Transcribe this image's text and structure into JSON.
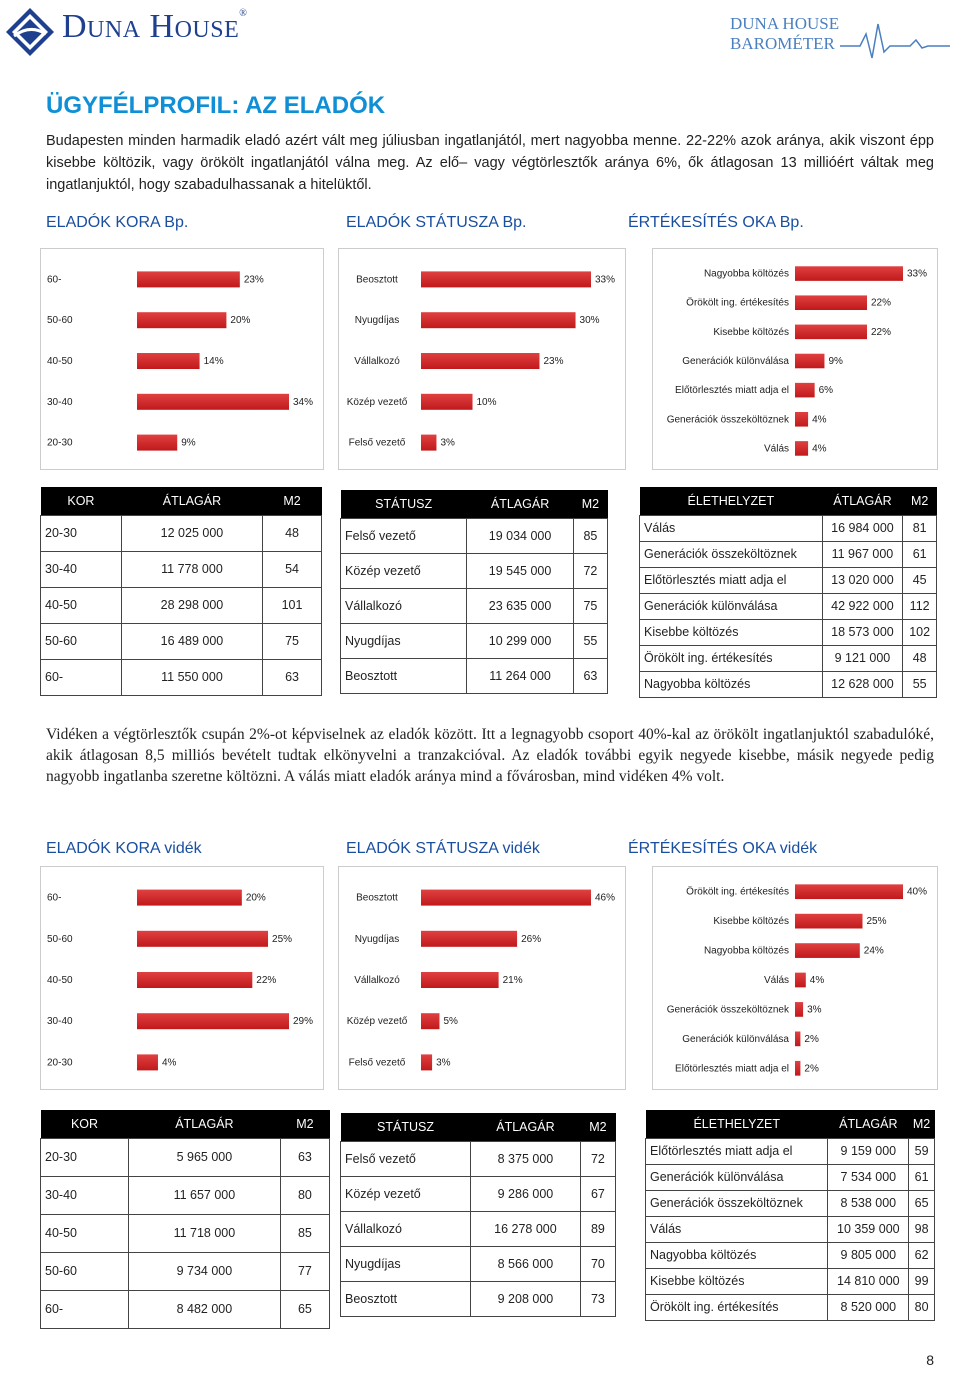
{
  "header": {
    "brand": "Duna House",
    "barometer_line1": "DUNA HOUSE",
    "barometer_line2": "BAROMÉTER",
    "colors": {
      "brand_blue": "#1f3f8f",
      "accent": "#0e8fd6",
      "bar_red": "#c0191c"
    }
  },
  "title": "ÜGYFÉLPROFIL: AZ ELADÓK",
  "paragraph1": "Budapesten minden harmadik eladó azért vált meg júliusban ingatlanjától, mert nagyobba menne. 22-22% azok aránya, akik viszont épp kisebbe költözik, vagy örökölt ingatlanjától válna meg. Az elő– vagy végtörlesztők aránya 6%, ők átlagosan 13 millióért váltak meg ingatlanjuktól, hogy szabadulhassanak a hitelüktől.",
  "paragraph2": "Vidéken a végtörlesztők csupán 2%-ot képviselnek az eladók között. Itt a legnagyobb csoport 40%-kal az örökölt ingatlanjuktól szabadulóké, akik átlagosan 8,5 milliós bevételt tudtak elkönyvelni a tranzakcióval. Az eladók további egyik negyede kisebbe, másik negyede pedig nagyobb ingatlanba szeretne költözni. A válás miatt eladók aránya mind a fővárosban, mind vidéken 4% volt.",
  "sections": {
    "bp_age": "ELADÓK KORA Bp.",
    "bp_status": "ELADÓK STÁTUSZA Bp.",
    "bp_reason": "ÉRTÉKESÍTÉS OKA Bp.",
    "v_age": "ELADÓK KORA vidék",
    "v_status": "ELADÓK STÁTUSZA vidék",
    "v_reason": "ÉRTÉKESÍTÉS OKA vidék"
  },
  "chart_data": [
    {
      "type": "bar",
      "id": "bp_age",
      "categories": [
        "60-",
        "50-60",
        "40-50",
        "30-40",
        "20-30"
      ],
      "labels": [
        "23%",
        "20%",
        "14%",
        "34%",
        "9%"
      ],
      "values": [
        23,
        20,
        14,
        34,
        9
      ],
      "unit": "%"
    },
    {
      "type": "bar",
      "id": "bp_status",
      "categories": [
        "Beosztott",
        "Nyugdíjas",
        "Vállalkozó",
        "Közép vezető",
        "Felső vezető"
      ],
      "labels": [
        "33%",
        "30%",
        "23%",
        "10%",
        "3%"
      ],
      "values": [
        33,
        30,
        23,
        10,
        3
      ],
      "unit": "%"
    },
    {
      "type": "bar",
      "id": "bp_reason",
      "categories": [
        "Nagyobba költözés",
        "Örökölt ing. értékesítés",
        "Kisebbe költözés",
        "Generációk különválása",
        "Előtörlesztés miatt adja el",
        "Generációk összeköltöznek",
        "Válás"
      ],
      "labels": [
        "33%",
        "22%",
        "22%",
        "9%",
        "6%",
        "4%",
        "4%"
      ],
      "values": [
        33,
        22,
        22,
        9,
        6,
        4,
        4
      ],
      "unit": "%"
    },
    {
      "type": "bar",
      "id": "v_age",
      "categories": [
        "60-",
        "50-60",
        "40-50",
        "30-40",
        "20-30"
      ],
      "labels": [
        "20%",
        "25%",
        "22%",
        "29%",
        "4%"
      ],
      "values": [
        20,
        25,
        22,
        29,
        4
      ],
      "unit": "%"
    },
    {
      "type": "bar",
      "id": "v_status",
      "categories": [
        "Beosztott",
        "Nyugdíjas",
        "Vállalkozó",
        "Közép vezető",
        "Felső vezető"
      ],
      "labels": [
        "46%",
        "26%",
        "21%",
        "5%",
        "3%"
      ],
      "values": [
        46,
        26,
        21,
        5,
        3
      ],
      "unit": "%"
    },
    {
      "type": "bar",
      "id": "v_reason",
      "categories": [
        "Örökölt ing. értékesítés",
        "Kisebbe költözés",
        "Nagyobba költözés",
        "Válás",
        "Generációk összeköltöznek",
        "Generációk különválása",
        "Előtörlesztés miatt adja el"
      ],
      "labels": [
        "40%",
        "25%",
        "24%",
        "4%",
        "3%",
        "2%",
        "2%"
      ],
      "values": [
        40,
        25,
        24,
        4,
        3,
        2,
        2
      ],
      "unit": "%"
    }
  ],
  "tables": {
    "bp_age": {
      "headers": [
        "KOR",
        "ÁTLAGÁR",
        "M2"
      ],
      "rows": [
        [
          "20-30",
          "12 025 000",
          "48"
        ],
        [
          "30-40",
          "11 778 000",
          "54"
        ],
        [
          "40-50",
          "28 298 000",
          "101"
        ],
        [
          "50-60",
          "16 489 000",
          "75"
        ],
        [
          "60-",
          "11 550 000",
          "63"
        ]
      ]
    },
    "bp_status": {
      "headers": [
        "STÁTUSZ",
        "ÁTLAGÁR",
        "M2"
      ],
      "rows": [
        [
          "Felső vezető",
          "19 034 000",
          "85"
        ],
        [
          "Közép vezető",
          "19 545 000",
          "72"
        ],
        [
          "Vállalkozó",
          "23 635 000",
          "75"
        ],
        [
          "Nyugdíjas",
          "10 299 000",
          "55"
        ],
        [
          "Beosztott",
          "11 264 000",
          "63"
        ]
      ]
    },
    "bp_reason": {
      "headers": [
        "ÉLETHELYZET",
        "ÁTLAGÁR",
        "M2"
      ],
      "rows": [
        [
          "Válás",
          "16 984 000",
          "81"
        ],
        [
          "Generációk összeköltöznek",
          "11 967 000",
          "61"
        ],
        [
          "Előtörlesztés miatt adja el",
          "13 020 000",
          "45"
        ],
        [
          "Generációk különválása",
          "42 922 000",
          "112"
        ],
        [
          "Kisebbe költözés",
          "18 573 000",
          "102"
        ],
        [
          "Örökölt ing. értékesítés",
          "9 121 000",
          "48"
        ],
        [
          "Nagyobba költözés",
          "12 628 000",
          "55"
        ]
      ]
    },
    "v_age": {
      "headers": [
        "KOR",
        "ÁTLAGÁR",
        "M2"
      ],
      "rows": [
        [
          "20-30",
          "5 965 000",
          "63"
        ],
        [
          "30-40",
          "11 657 000",
          "80"
        ],
        [
          "40-50",
          "11 718 000",
          "85"
        ],
        [
          "50-60",
          "9 734 000",
          "77"
        ],
        [
          "60-",
          "8 482 000",
          "65"
        ]
      ]
    },
    "v_status": {
      "headers": [
        "STÁTUSZ",
        "ÁTLAGÁR",
        "M2"
      ],
      "rows": [
        [
          "Felső vezető",
          "8 375 000",
          "72"
        ],
        [
          "Közép vezető",
          "9 286 000",
          "67"
        ],
        [
          "Vállalkozó",
          "16 278 000",
          "89"
        ],
        [
          "Nyugdíjas",
          "8 566 000",
          "70"
        ],
        [
          "Beosztott",
          "9 208 000",
          "73"
        ]
      ]
    },
    "v_reason": {
      "headers": [
        "ÉLETHELYZET",
        "ÁTLAGÁR",
        "M2"
      ],
      "rows": [
        [
          "Előtörlesztés miatt adja el",
          "9 159 000",
          "59"
        ],
        [
          "Generációk különválása",
          "7 534 000",
          "61"
        ],
        [
          "Generációk összeköltöznek",
          "8 538 000",
          "65"
        ],
        [
          "Válás",
          "10 359 000",
          "98"
        ],
        [
          "Nagyobba költözés",
          "9 805 000",
          "62"
        ],
        [
          "Kisebbe költözés",
          "14 810 000",
          "99"
        ],
        [
          "Örökölt ing. értékesítés",
          "8 520 000",
          "80"
        ]
      ]
    }
  },
  "page_number": "8"
}
